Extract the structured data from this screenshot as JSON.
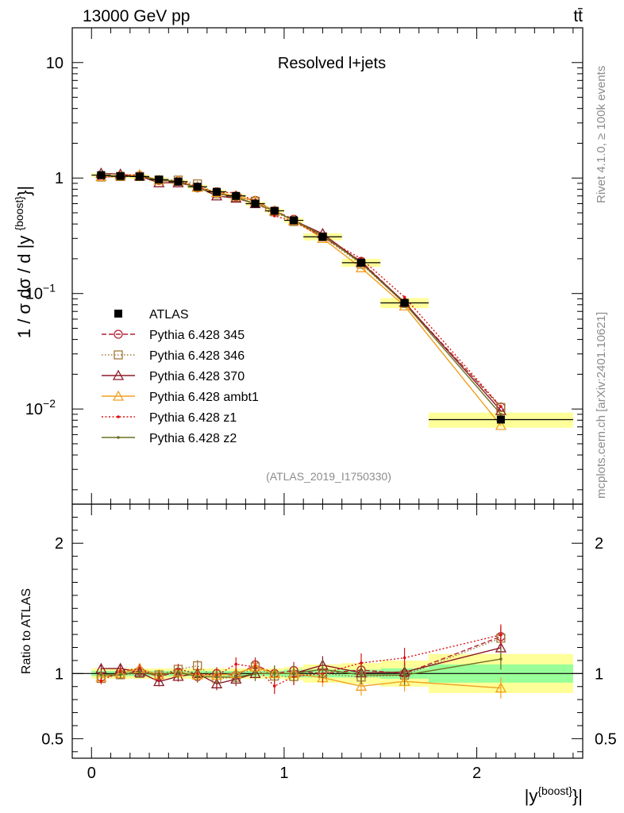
{
  "header": {
    "left": "13000 GeV pp",
    "right": "tt̄"
  },
  "side_labels": {
    "rivet": "Rivet 4.1.0, ≥ 100k events",
    "mcplots": "mcplots.cern.ch [arXiv:2401.10621]"
  },
  "chart_data": {
    "type": "line",
    "title": "Resolved l+jets",
    "reference": "(ATLAS_2019_I1750330)",
    "ylabel": "1 / σ dσ / d |y^{boost}|",
    "xlabel": "|y^{boost}|",
    "ratio_ylabel": "Ratio to ATLAS",
    "xlim": [
      -0.1,
      2.55
    ],
    "ylim": [
      0.0015,
      20
    ],
    "ylog": true,
    "ratio_ylim": [
      0.35,
      2.3
    ],
    "x_ticks": [
      {
        "v": 0,
        "l": "0"
      },
      {
        "v": 1,
        "l": "1"
      },
      {
        "v": 2,
        "l": "2"
      }
    ],
    "y_ticks": [
      {
        "v": 0.01,
        "b": "10",
        "e": "−2"
      },
      {
        "v": 0.1,
        "b": "10",
        "e": "−1"
      },
      {
        "v": 1,
        "b": "1",
        "e": ""
      },
      {
        "v": 10,
        "b": "10",
        "e": ""
      }
    ],
    "ratio_ticks": [
      {
        "v": 0.5,
        "l": "0.5"
      },
      {
        "v": 1,
        "l": "1"
      },
      {
        "v": 2,
        "l": "2"
      }
    ],
    "bins": [
      [
        0,
        0.1
      ],
      [
        0.1,
        0.2
      ],
      [
        0.2,
        0.3
      ],
      [
        0.3,
        0.4
      ],
      [
        0.4,
        0.5
      ],
      [
        0.5,
        0.6
      ],
      [
        0.6,
        0.7
      ],
      [
        0.7,
        0.8
      ],
      [
        0.8,
        0.9
      ],
      [
        0.9,
        1.0
      ],
      [
        1.0,
        1.1
      ],
      [
        1.1,
        1.3
      ],
      [
        1.3,
        1.5
      ],
      [
        1.5,
        1.75
      ],
      [
        1.75,
        2.5
      ]
    ],
    "x": [
      0.05,
      0.15,
      0.25,
      0.35,
      0.45,
      0.55,
      0.65,
      0.75,
      0.85,
      0.95,
      1.05,
      1.2,
      1.4,
      1.625,
      2.125
    ],
    "data": {
      "name": "ATLAS",
      "values": [
        1.06,
        1.04,
        1.03,
        0.97,
        0.93,
        0.84,
        0.76,
        0.7,
        0.6,
        0.52,
        0.43,
        0.31,
        0.185,
        0.083,
        0.0081
      ],
      "band_stat": [
        0.02,
        0.02,
        0.02,
        0.02,
        0.02,
        0.02,
        0.02,
        0.02,
        0.02,
        0.02,
        0.03,
        0.03,
        0.03,
        0.04,
        0.07
      ],
      "band_total": [
        0.04,
        0.04,
        0.04,
        0.04,
        0.04,
        0.04,
        0.04,
        0.04,
        0.04,
        0.04,
        0.05,
        0.07,
        0.08,
        0.1,
        0.15
      ]
    },
    "series": [
      {
        "name": "Pythia 6.428 345",
        "color": "#b22234",
        "marker": "circle",
        "dash": "6,3",
        "values": [
          1.03,
          1.03,
          1.05,
          0.95,
          0.94,
          0.82,
          0.76,
          0.69,
          0.64,
          0.52,
          0.44,
          0.31,
          0.19,
          0.083,
          0.0104
        ]
      },
      {
        "name": "Pythia 6.428 346",
        "color": "#a07838",
        "marker": "square",
        "dash": "1.5,2.5",
        "values": [
          1.02,
          1.03,
          1.03,
          0.96,
          0.96,
          0.89,
          0.73,
          0.68,
          0.63,
          0.51,
          0.42,
          0.31,
          0.18,
          0.082,
          0.0103
        ]
      },
      {
        "name": "Pythia 6.428 370",
        "color": "#8b1a2a",
        "marker": "triangle",
        "dash": "",
        "values": [
          1.1,
          1.08,
          1.04,
          0.91,
          0.91,
          0.84,
          0.7,
          0.67,
          0.6,
          0.52,
          0.43,
          0.33,
          0.186,
          0.084,
          0.0097
        ]
      },
      {
        "name": "Pythia 6.428 ambt1",
        "color": "#f0a020",
        "marker": "triangle",
        "dash": "",
        "values": [
          1.03,
          1.04,
          1.07,
          0.96,
          0.94,
          0.83,
          0.75,
          0.7,
          0.63,
          0.52,
          0.43,
          0.3,
          0.167,
          0.078,
          0.0072
        ]
      },
      {
        "name": "Pythia 6.428 z1",
        "color": "#dd1111",
        "marker": "dot",
        "dash": "2,2.5",
        "values": [
          1.0,
          1.06,
          1.07,
          0.94,
          0.96,
          0.84,
          0.75,
          0.75,
          0.63,
          0.47,
          0.42,
          0.31,
          0.2,
          0.093,
          0.0105
        ]
      },
      {
        "name": "Pythia 6.428 z2",
        "color": "#6b7020",
        "marker": "dot",
        "dash": "",
        "values": [
          1.05,
          1.03,
          1.04,
          0.96,
          0.94,
          0.82,
          0.74,
          0.68,
          0.6,
          0.52,
          0.43,
          0.32,
          0.183,
          0.082,
          0.009
        ]
      }
    ]
  }
}
